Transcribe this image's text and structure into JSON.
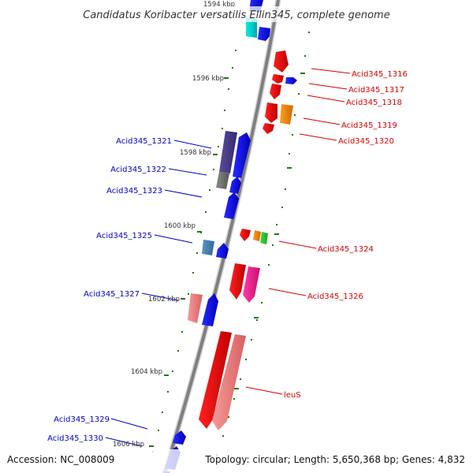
{
  "title": "Candidatus Koribacter versatilis Ellin345, complete genome",
  "footer": {
    "accession": "Accession: NC_008009",
    "topology": "Topology: circular; Length: 5,650,368 bp; Genes: 4,832"
  },
  "colors": {
    "backbone": "#7f7f7f",
    "tick": "#1b7a12",
    "label_right": "#d80000",
    "label_left": "#0000c8"
  },
  "scale_labels": [
    "1594 kbp",
    "1596 kbp",
    "1598 kbp",
    "1600 kbp",
    "1602 kbp",
    "1604 kbp",
    "1606 kbp"
  ],
  "gene_labels": {
    "right": [
      "Acid345_1316",
      "Acid345_1317",
      "Acid345_1318",
      "Acid345_1319",
      "Acid345_1320",
      "Acid345_1324",
      "Acid345_1326",
      "leuS"
    ],
    "left": [
      "Acid345_1321",
      "Acid345_1322",
      "Acid345_1323",
      "Acid345_1325",
      "Acid345_1327",
      "Acid345_1329",
      "Acid345_1330"
    ]
  },
  "features": [
    {
      "name": "feature-cyan-top",
      "color": "#00e5ee",
      "strand": "reverse"
    },
    {
      "name": "feature-blue-top",
      "color": "#1010ff",
      "strand": "reverse"
    },
    {
      "name": "feature-acid345-1316",
      "color": "#ff0000",
      "strand": "reverse"
    },
    {
      "name": "feature-acid345-1317",
      "color": "#ff0000",
      "strand": "reverse"
    },
    {
      "name": "feature-acid345-1317-blue",
      "color": "#1010ff",
      "strand": "forward"
    },
    {
      "name": "feature-acid345-1318",
      "color": "#ff0000",
      "strand": "reverse"
    },
    {
      "name": "feature-acid345-1319",
      "color": "#ff8c00",
      "strand": "reverse"
    },
    {
      "name": "feature-acid345-1320",
      "color": "#ff0000",
      "strand": "reverse"
    },
    {
      "name": "feature-acid345-1321",
      "color": "#483d8b",
      "strand": "forward"
    },
    {
      "name": "feature-acid345-1322",
      "color": "#707070",
      "strand": "forward"
    },
    {
      "name": "feature-acid345-1323",
      "color": "#1010ff",
      "strand": "forward"
    },
    {
      "name": "feature-acid345-1324",
      "color": "#ff0000",
      "strand": "reverse"
    },
    {
      "name": "feature-acid345-1325",
      "color": "#4682b4",
      "strand": "forward"
    },
    {
      "name": "feature-acid345-1326",
      "color": "#ff1493",
      "strand": "reverse"
    },
    {
      "name": "feature-acid345-1327",
      "color": "#f08080",
      "strand": "forward"
    },
    {
      "name": "feature-leus",
      "color": "#ff0000",
      "strand": "reverse"
    },
    {
      "name": "feature-acid345-1329",
      "color": "#1010ff",
      "strand": "forward"
    },
    {
      "name": "feature-acid345-1330",
      "color": "#1010ff",
      "strand": "forward"
    }
  ]
}
